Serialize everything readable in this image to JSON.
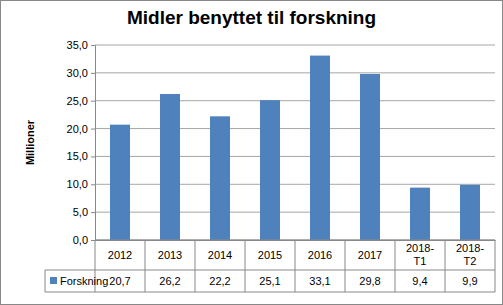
{
  "chart_data": {
    "type": "bar",
    "title": "Midler benyttet til forskning",
    "y_label": "Millioner",
    "categories": [
      "2012",
      "2013",
      "2014",
      "2015",
      "2016",
      "2017",
      "2018-T1",
      "2018-T2"
    ],
    "series": [
      {
        "name": "Forskning",
        "color": "#4f81bd",
        "values": [
          20.7,
          26.2,
          22.2,
          25.1,
          33.1,
          29.8,
          9.4,
          9.9
        ],
        "value_labels": [
          "20,7",
          "26,2",
          "22,2",
          "25,1",
          "33,1",
          "29,8",
          "9,4",
          "9,9"
        ]
      }
    ],
    "ylim": [
      0,
      35
    ],
    "yticks": [
      {
        "value": 0,
        "label": "0,0"
      },
      {
        "value": 5,
        "label": "5,0"
      },
      {
        "value": 10,
        "label": "10,0"
      },
      {
        "value": 15,
        "label": "15,0"
      },
      {
        "value": 20,
        "label": "20,0"
      },
      {
        "value": 25,
        "label": "25,0"
      },
      {
        "value": 30,
        "label": "30,0"
      },
      {
        "value": 35,
        "label": "35,0"
      }
    ],
    "grid": true,
    "legend": "bottom"
  }
}
